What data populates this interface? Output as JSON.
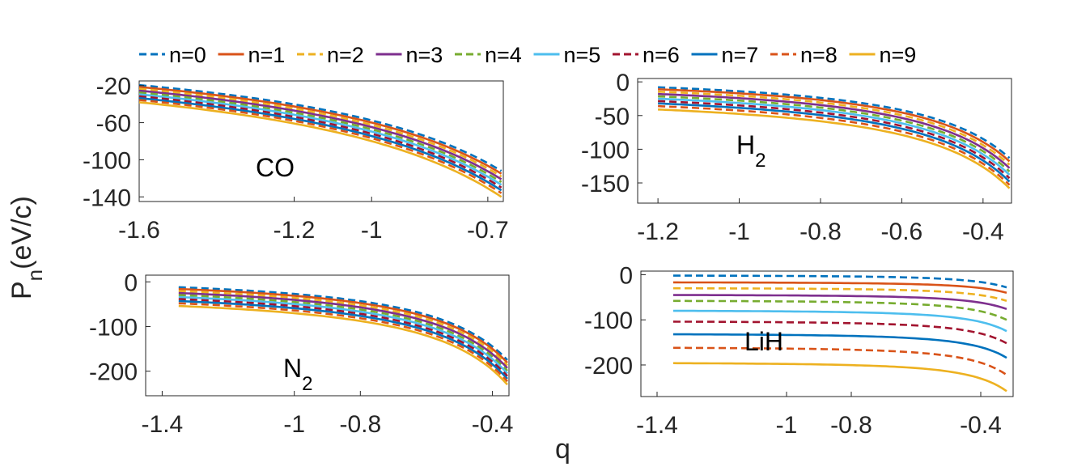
{
  "figure": {
    "ylabel_main": "P",
    "ylabel_sub": "n",
    "ylabel_unit": "(eV/c)",
    "xlabel": "q"
  },
  "legend": [
    {
      "label": "n=0",
      "color": "#0072BD",
      "dash": true
    },
    {
      "label": "n=1",
      "color": "#D95319",
      "dash": false
    },
    {
      "label": "n=2",
      "color": "#EDB120",
      "dash": true
    },
    {
      "label": "n=3",
      "color": "#7E2F8E",
      "dash": false
    },
    {
      "label": "n=4",
      "color": "#77AC30",
      "dash": true
    },
    {
      "label": "n=5",
      "color": "#4DBEEE",
      "dash": false
    },
    {
      "label": "n=6",
      "color": "#A2142F",
      "dash": true
    },
    {
      "label": "n=7",
      "color": "#0072BD",
      "dash": false
    },
    {
      "label": "n=8",
      "color": "#D95319",
      "dash": true
    },
    {
      "label": "n=9",
      "color": "#EDB120",
      "dash": false
    }
  ],
  "chart_data": [
    {
      "type": "line",
      "id": "co",
      "annotation": {
        "main": "CO",
        "sub": ""
      },
      "xlabel": "q",
      "ylabel": "P_n (eV/c)",
      "xlim": [
        -1.6,
        -0.66
      ],
      "ylim": [
        -145,
        -15
      ],
      "xticks": [
        -1.6,
        -1.2,
        -1,
        -0.7
      ],
      "xtick_labels": [
        "-1.6",
        "-1.2",
        "-1",
        "-0.7"
      ],
      "yticks": [
        -20,
        -60,
        -100,
        -140
      ],
      "ytick_labels": [
        "-20",
        "-60",
        "-100",
        "-140"
      ],
      "x_start": -1.6,
      "x_end": -0.665,
      "model": {
        "kind": "power",
        "alpha": 1.15
      },
      "series": [
        {
          "name": "n=0",
          "start": -19.5,
          "end": -112
        },
        {
          "name": "n=1",
          "start": -21.5,
          "end": -115
        },
        {
          "name": "n=2",
          "start": -23.5,
          "end": -118
        },
        {
          "name": "n=3",
          "start": -25.5,
          "end": -121
        },
        {
          "name": "n=4",
          "start": -27.5,
          "end": -124
        },
        {
          "name": "n=5",
          "start": -29.5,
          "end": -127
        },
        {
          "name": "n=6",
          "start": -31.5,
          "end": -130
        },
        {
          "name": "n=7",
          "start": -33.5,
          "end": -133
        },
        {
          "name": "n=8",
          "start": -35.5,
          "end": -136
        },
        {
          "name": "n=9",
          "start": -38,
          "end": -140
        }
      ]
    },
    {
      "type": "line",
      "id": "h2",
      "annotation": {
        "main": "H",
        "sub": "2"
      },
      "xlabel": "q",
      "ylabel": "P_n (eV/c)",
      "xlim": [
        -1.25,
        -0.33
      ],
      "ylim": [
        -180,
        5
      ],
      "xticks": [
        -1.2,
        -1,
        -0.8,
        -0.6,
        -0.4
      ],
      "xtick_labels": [
        "-1.2",
        "-1",
        "-0.8",
        "-0.6",
        "-0.4"
      ],
      "yticks": [
        0,
        -50,
        -100,
        -150
      ],
      "ytick_labels": [
        "0",
        "-50",
        "-100",
        "-150"
      ],
      "x_start": -1.2,
      "x_end": -0.335,
      "model": {
        "kind": "power",
        "alpha": 1.45
      },
      "series": [
        {
          "name": "n=0",
          "start": -8,
          "end": -113
        },
        {
          "name": "n=1",
          "start": -11,
          "end": -118
        },
        {
          "name": "n=2",
          "start": -14.5,
          "end": -123
        },
        {
          "name": "n=3",
          "start": -18,
          "end": -128
        },
        {
          "name": "n=4",
          "start": -21.5,
          "end": -133
        },
        {
          "name": "n=5",
          "start": -25,
          "end": -138
        },
        {
          "name": "n=6",
          "start": -28.5,
          "end": -143
        },
        {
          "name": "n=7",
          "start": -32,
          "end": -148
        },
        {
          "name": "n=8",
          "start": -36,
          "end": -153
        },
        {
          "name": "n=9",
          "start": -41,
          "end": -158
        }
      ]
    },
    {
      "type": "line",
      "id": "n2",
      "annotation": {
        "main": "N",
        "sub": "2"
      },
      "xlabel": "q",
      "ylabel": "P_n (eV/c)",
      "xlim": [
        -1.45,
        -0.35
      ],
      "ylim": [
        -255,
        15
      ],
      "xticks": [
        -1.4,
        -1,
        -0.8,
        -0.4
      ],
      "xtick_labels": [
        "-1.4",
        "-1",
        "-0.8",
        "-0.4"
      ],
      "yticks": [
        0,
        -100,
        -200
      ],
      "ytick_labels": [
        "0",
        "-100",
        "-200"
      ],
      "x_start": -1.35,
      "x_end": -0.355,
      "model": {
        "kind": "power",
        "alpha": 1.45
      },
      "series": [
        {
          "name": "n=0",
          "start": -12,
          "end": -175
        },
        {
          "name": "n=1",
          "start": -16,
          "end": -181
        },
        {
          "name": "n=2",
          "start": -20.5,
          "end": -187
        },
        {
          "name": "n=3",
          "start": -25,
          "end": -193
        },
        {
          "name": "n=4",
          "start": -29.5,
          "end": -199
        },
        {
          "name": "n=5",
          "start": -34,
          "end": -205
        },
        {
          "name": "n=6",
          "start": -38.5,
          "end": -211
        },
        {
          "name": "n=7",
          "start": -43,
          "end": -217
        },
        {
          "name": "n=8",
          "start": -48,
          "end": -223
        },
        {
          "name": "n=9",
          "start": -54,
          "end": -230
        }
      ]
    },
    {
      "type": "line",
      "id": "lih",
      "annotation": {
        "main": "LiH",
        "sub": ""
      },
      "xlabel": "q",
      "ylabel": "P_n (eV/c)",
      "xlim": [
        -1.45,
        -0.3
      ],
      "ylim": [
        -270,
        8
      ],
      "xticks": [
        -1.4,
        -1,
        -0.8,
        -0.4
      ],
      "xtick_labels": [
        "-1.4",
        "-1",
        "-0.8",
        "-0.4"
      ],
      "yticks": [
        0,
        -100,
        -200
      ],
      "ytick_labels": [
        "0",
        "-100",
        "-200"
      ],
      "x_start": -1.35,
      "x_end": -0.32,
      "model": {
        "kind": "power",
        "alpha": 2.6
      },
      "series": [
        {
          "name": "n=0",
          "start": -2,
          "end": -28
        },
        {
          "name": "n=1",
          "start": -17,
          "end": -40
        },
        {
          "name": "n=2",
          "start": -30,
          "end": -58
        },
        {
          "name": "n=3",
          "start": -45,
          "end": -76
        },
        {
          "name": "n=4",
          "start": -58,
          "end": -100
        },
        {
          "name": "n=5",
          "start": -80,
          "end": -125
        },
        {
          "name": "n=6",
          "start": -104,
          "end": -152
        },
        {
          "name": "n=7",
          "start": -132,
          "end": -184
        },
        {
          "name": "n=8",
          "start": -162,
          "end": -222
        },
        {
          "name": "n=9",
          "start": -196,
          "end": -258
        }
      ]
    }
  ]
}
